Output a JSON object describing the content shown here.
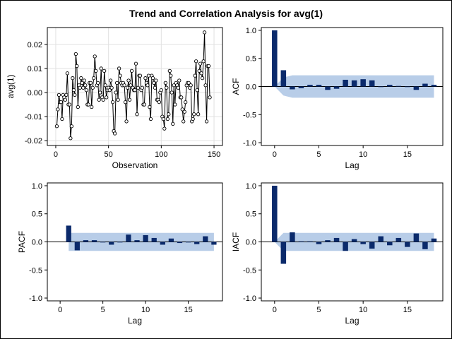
{
  "title": "Trend and Correlation Analysis for avg(1)",
  "colors": {
    "bar": "#0b2a6b",
    "band": "#b8cde8",
    "line": "#000000",
    "grid": "#e1e1e1"
  },
  "chart_data": [
    {
      "type": "line",
      "name": "trend",
      "xlabel": "Observation",
      "ylabel": "avg(1)",
      "xlim": [
        -8,
        158
      ],
      "ylim": [
        -0.022,
        0.027
      ],
      "xticks": [
        0,
        50,
        100,
        150
      ],
      "yticks": [
        -0.02,
        -0.01,
        0.0,
        0.01,
        0.02
      ],
      "xtick_labels": [
        "0",
        "50",
        "100",
        "150"
      ],
      "ytick_labels": [
        "-0.02",
        "-0.01",
        "0.00",
        "0.01",
        "0.02"
      ],
      "grid": true,
      "markers": "circle",
      "values": [
        -0.014,
        -0.007,
        -0.001,
        -0.004,
        -0.004,
        -0.011,
        -0.001,
        -0.002,
        -0.003,
        -0.001,
        0.008,
        -0.005,
        -0.005,
        -0.019,
        -0.014,
        0.006,
        0.001,
        -0.001,
        0.016,
        0.011,
        -0.006,
        0.003,
        0.002,
        0.006,
        0.004,
        0.002,
        0.005,
        0.003,
        0.001,
        -0.005,
        -0.005,
        0.004,
        0.004,
        -0.006,
        0.002,
        0.006,
        0.015,
        0.009,
        0.003,
        0.004,
        -0.003,
        0.0,
        0.01,
        -0.002,
        -0.003,
        0.009,
        0.003,
        -0.002,
        0.001,
        0.002,
        0.001,
        0.005,
        0.002,
        -0.004,
        -0.016,
        -0.017,
        0.0,
        0.004,
        -0.003,
        0.01,
        0.007,
        0.004,
        0.003,
        0.004,
        0.003,
        -0.004,
        -0.012,
        0.002,
        0.005,
        -0.003,
        0.003,
        0.009,
        0.002,
        0.001,
        0.001,
        0.012,
        -0.009,
        0.002,
        0.007,
        0.007,
        0.001,
        0.002,
        -0.005,
        -0.005,
        0.006,
        0.004,
        0.003,
        0.007,
        -0.006,
        -0.011,
        0.007,
        0.006,
        0.004,
        0.002,
        0.005,
        -0.003,
        -0.003,
        -0.004,
        0.0,
        0.001,
        -0.01,
        -0.011,
        -0.015,
        0.004,
        0.002,
        -0.011,
        -0.009,
        0.009,
        0.007,
        0.0,
        -0.013,
        0.003,
        -0.005,
        0.004,
        0.003,
        0.002,
        0.005,
        -0.002,
        -0.002,
        -0.007,
        -0.012,
        -0.008,
        -0.004,
        0.003,
        0.004,
        0.004,
        0.002,
        0.003,
        -0.012,
        -0.011,
        -0.009,
        0.007,
        0.013,
        0.001,
        -0.009,
        0.009,
        0.012,
        0.008,
        0.006,
        0.013,
        0.025,
        0.003,
        -0.012,
        0.011,
        0.011,
        -0.002
      ]
    },
    {
      "type": "bar",
      "name": "acf",
      "xlabel": "Lag",
      "ylabel": "ACF",
      "xlim": [
        -1.5,
        19
      ],
      "ylim": [
        -1.05,
        1.05
      ],
      "xticks": [
        0,
        5,
        10,
        15
      ],
      "yticks": [
        -1.0,
        -0.5,
        0.0,
        0.5,
        1.0
      ],
      "xtick_labels": [
        "0",
        "5",
        "10",
        "15"
      ],
      "ytick_labels": [
        "-1.0",
        "-0.5",
        "0.0",
        "0.5",
        "1.0"
      ],
      "lags": [
        0,
        1,
        2,
        3,
        4,
        5,
        6,
        7,
        8,
        9,
        10,
        11,
        12,
        13,
        14,
        15,
        16,
        17,
        18
      ],
      "values": [
        1.0,
        0.29,
        -0.05,
        -0.03,
        0.03,
        0.03,
        -0.06,
        -0.04,
        0.12,
        0.11,
        0.13,
        0.11,
        0.0,
        0.03,
        0.01,
        0.0,
        -0.06,
        0.05,
        0.03
      ],
      "band_upper": [
        0.0,
        0.16,
        0.2,
        0.2,
        0.2,
        0.2,
        0.2,
        0.2,
        0.2,
        0.2,
        0.2,
        0.2,
        0.2,
        0.2,
        0.2,
        0.2,
        0.2,
        0.2,
        0.2
      ],
      "band_lower": [
        0.0,
        -0.16,
        -0.2,
        -0.2,
        -0.2,
        -0.2,
        -0.2,
        -0.2,
        -0.2,
        -0.2,
        -0.2,
        -0.2,
        -0.2,
        -0.2,
        -0.2,
        -0.2,
        -0.2,
        -0.2,
        -0.2
      ]
    },
    {
      "type": "bar",
      "name": "pacf",
      "xlabel": "Lag",
      "ylabel": "PACF",
      "xlim": [
        -1.5,
        19
      ],
      "ylim": [
        -1.05,
        1.05
      ],
      "xticks": [
        0,
        5,
        10,
        15
      ],
      "yticks": [
        -1.0,
        -0.5,
        0.0,
        0.5,
        1.0
      ],
      "xtick_labels": [
        "0",
        "5",
        "10",
        "15"
      ],
      "ytick_labels": [
        "-1.0",
        "-0.5",
        "0.0",
        "0.5",
        "1.0"
      ],
      "lags": [
        1,
        2,
        3,
        4,
        5,
        6,
        7,
        8,
        9,
        10,
        11,
        12,
        13,
        14,
        15,
        16,
        17,
        18
      ],
      "values": [
        0.29,
        -0.15,
        0.03,
        0.03,
        0.0,
        -0.05,
        0.0,
        0.13,
        0.03,
        0.12,
        0.07,
        -0.05,
        0.06,
        -0.02,
        0.0,
        -0.04,
        0.1,
        -0.05
      ],
      "band_upper": [
        0.16,
        0.16,
        0.16,
        0.16,
        0.16,
        0.16,
        0.16,
        0.16,
        0.16,
        0.16,
        0.16,
        0.16,
        0.16,
        0.16,
        0.16,
        0.16,
        0.16,
        0.16
      ],
      "band_lower": [
        -0.16,
        -0.16,
        -0.16,
        -0.16,
        -0.16,
        -0.16,
        -0.16,
        -0.16,
        -0.16,
        -0.16,
        -0.16,
        -0.16,
        -0.16,
        -0.16,
        -0.16,
        -0.16,
        -0.16,
        -0.16
      ]
    },
    {
      "type": "bar",
      "name": "iacf",
      "xlabel": "Lag",
      "ylabel": "IACF",
      "xlim": [
        -1.5,
        19
      ],
      "ylim": [
        -1.05,
        1.05
      ],
      "xticks": [
        0,
        5,
        10,
        15
      ],
      "yticks": [
        -1.0,
        -0.5,
        0.0,
        0.5,
        1.0
      ],
      "xtick_labels": [
        "0",
        "5",
        "10",
        "15"
      ],
      "ytick_labels": [
        "-1.0",
        "-0.5",
        "0.0",
        "0.5",
        "1.0"
      ],
      "lags": [
        0,
        1,
        2,
        3,
        4,
        5,
        6,
        7,
        8,
        9,
        10,
        11,
        12,
        13,
        14,
        15,
        16,
        17,
        18
      ],
      "values": [
        1.0,
        -0.39,
        0.17,
        0.01,
        0.01,
        -0.04,
        0.03,
        0.07,
        -0.16,
        0.05,
        -0.04,
        -0.12,
        0.1,
        -0.06,
        0.07,
        -0.09,
        0.15,
        -0.13,
        0.06
      ],
      "band_upper": [
        0.0,
        0.16,
        0.16,
        0.16,
        0.16,
        0.16,
        0.16,
        0.16,
        0.16,
        0.16,
        0.16,
        0.16,
        0.16,
        0.16,
        0.16,
        0.16,
        0.16,
        0.16,
        0.16
      ],
      "band_lower": [
        0.0,
        -0.16,
        -0.16,
        -0.16,
        -0.16,
        -0.16,
        -0.16,
        -0.16,
        -0.16,
        -0.16,
        -0.16,
        -0.16,
        -0.16,
        -0.16,
        -0.16,
        -0.16,
        -0.16,
        -0.16,
        -0.16
      ]
    }
  ]
}
